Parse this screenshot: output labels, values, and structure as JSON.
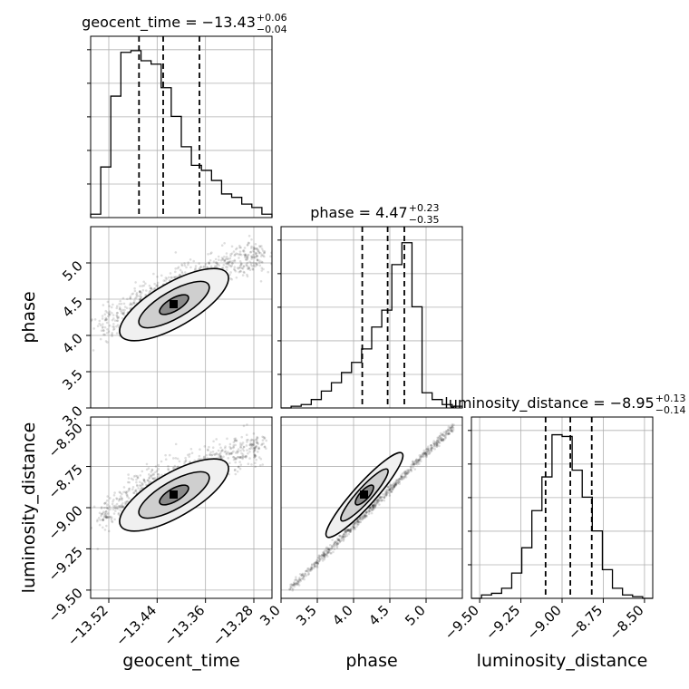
{
  "chart_data": {
    "type": "corner",
    "parameters": [
      {
        "name": "geocent_time",
        "title": {
          "text": "geocent_time = −13.43",
          "plus": "+0.06",
          "minus": "−0.04"
        },
        "xlabel": "geocent_time",
        "range": [
          -13.55,
          -13.25
        ],
        "ticks": [
          -13.52,
          -13.44,
          -13.36,
          -13.28
        ],
        "tick_labels": [
          "−13.52",
          "−13.44",
          "−13.36",
          "−13.28"
        ],
        "quantiles": [
          -13.47,
          -13.43,
          -13.37
        ],
        "histogram": [
          0.02,
          0.3,
          0.72,
          0.98,
          0.99,
          0.93,
          0.91,
          0.77,
          0.6,
          0.42,
          0.31,
          0.28,
          0.22,
          0.14,
          0.12,
          0.08,
          0.06,
          0.02
        ]
      },
      {
        "name": "phase",
        "title": {
          "text": "phase = 4.47",
          "plus": "+0.23",
          "minus": "−0.35"
        },
        "xlabel": "phase",
        "ylabel": "phase",
        "range": [
          3.0,
          5.5
        ],
        "ticks": [
          3.0,
          3.5,
          4.0,
          4.5,
          5.0
        ],
        "tick_labels": [
          "3.0",
          "3.5",
          "4.0",
          "4.5",
          "5.0"
        ],
        "quantiles": [
          4.12,
          4.47,
          4.7
        ],
        "histogram": [
          0.0,
          0.01,
          0.02,
          0.05,
          0.1,
          0.15,
          0.21,
          0.27,
          0.35,
          0.48,
          0.58,
          0.85,
          0.98,
          0.6,
          0.09,
          0.05,
          0.02,
          0.01
        ]
      },
      {
        "name": "luminosity_distance",
        "title": {
          "text": "luminosity_distance = −8.95",
          "plus": "+0.13",
          "minus": "−0.14"
        },
        "xlabel": "luminosity_distance",
        "ylabel": "luminosity_distance",
        "range": [
          -9.55,
          -8.45
        ],
        "ticks": [
          -9.5,
          -9.25,
          -9.0,
          -8.75,
          -8.5
        ],
        "tick_labels": [
          "−9.50",
          "−9.25",
          "−9.00",
          "−8.75",
          "−8.50"
        ],
        "quantiles": [
          -9.1,
          -8.95,
          -8.82
        ],
        "histogram": [
          0.0,
          0.02,
          0.03,
          0.06,
          0.15,
          0.3,
          0.52,
          0.72,
          0.97,
          0.96,
          0.76,
          0.6,
          0.4,
          0.17,
          0.06,
          0.02,
          0.01,
          0.0
        ]
      }
    ],
    "grid": true,
    "contour_levels": 3
  }
}
